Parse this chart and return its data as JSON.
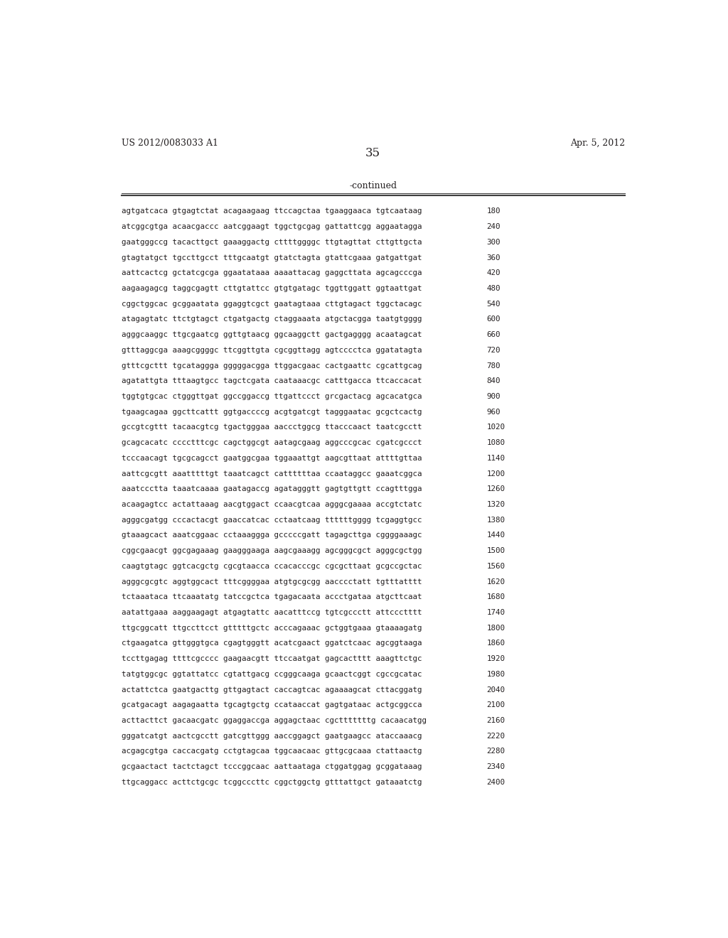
{
  "header_left": "US 2012/0083033 A1",
  "header_right": "Apr. 5, 2012",
  "page_number": "35",
  "continued_label": "-continued",
  "background_color": "#ffffff",
  "text_color": "#231f20",
  "font_size_header": 9.0,
  "font_size_page": 12,
  "font_size_continued": 9.0,
  "font_size_sequence": 7.8,
  "sequence_lines": [
    [
      "agtgatcaca gtgagtctat acagaagaag ttccagctaa tgaaggaaca tgtcaataag",
      "180"
    ],
    [
      "atcggcgtga acaacgaccc aatcggaagt tggctgcgag gattattcgg aggaatagga",
      "240"
    ],
    [
      "gaatgggccg tacacttgct gaaaggactg cttttggggc ttgtagttat cttgttgcta",
      "300"
    ],
    [
      "gtagtatgct tgccttgcct tttgcaatgt gtatctagta gtattcgaaa gatgattgat",
      "360"
    ],
    [
      "aattcactcg gctatcgcga ggaatataaa aaaattacag gaggcttata agcagcccga",
      "420"
    ],
    [
      "aagaagagcg taggcgagtt cttgtattcc gtgtgatagc tggttggatt ggtaattgat",
      "480"
    ],
    [
      "cggctggcac gcggaatata ggaggtcgct gaatagtaaa cttgtagact tggctacagc",
      "540"
    ],
    [
      "atagagtatc ttctgtagct ctgatgactg ctaggaaata atgctacgga taatgtgggg",
      "600"
    ],
    [
      "agggcaaggc ttgcgaatcg ggttgtaacg ggcaaggctt gactgagggg acaatagcat",
      "660"
    ],
    [
      "gtttaggcga aaagcggggc ttcggttgta cgcggttagg agtcccctca ggatatagta",
      "720"
    ],
    [
      "gtttcgcttt tgcataggga gggggacgga ttggacgaac cactgaattc cgcattgcag",
      "780"
    ],
    [
      "agatattgta tttaagtgcc tagctcgata caataaacgc catttgacca ttcaccacat",
      "840"
    ],
    [
      "tggtgtgcac ctgggttgat ggccggaccg ttgattccct grcgactacg agcacatgca",
      "900"
    ],
    [
      "tgaagcagaa ggcttcattt ggtgaccccg acgtgatcgt tagggaatac gcgctcactg",
      "960"
    ],
    [
      "gccgtcgttt tacaacgtcg tgactgggaa aaccctggcg ttacccaact taatcgcctt",
      "1020"
    ],
    [
      "gcagcacatc cccctttcgc cagctggcgt aatagcgaag aggcccgcac cgatcgccct",
      "1080"
    ],
    [
      "tcccaacagt tgcgcagcct gaatggcgaa tggaaattgt aagcgttaat attttgttaa",
      "1140"
    ],
    [
      "aattcgcgtt aaatttttgt taaatcagct cattttttaa ccaataggcc gaaatcggca",
      "1200"
    ],
    [
      "aaatccctta taaatcaaaa gaatagaccg agatagggtt gagtgttgtt ccagtttgga",
      "1260"
    ],
    [
      "acaagagtcc actattaaag aacgtggact ccaacgtcaa agggcgaaaa accgtctatc",
      "1320"
    ],
    [
      "agggcgatgg cccactacgt gaaccatcac cctaatcaag ttttttgggg tcgaggtgcc",
      "1380"
    ],
    [
      "gtaaagcact aaatcggaac cctaaaggga gcccccgatt tagagcttga cggggaaagc",
      "1440"
    ],
    [
      "cggcgaacgt ggcgagaaag gaagggaaga aagcgaaagg agcgggcgct agggcgctgg",
      "1500"
    ],
    [
      "caagtgtagc ggtcacgctg cgcgtaacca ccacacccgc cgcgcttaat gcgccgctac",
      "1560"
    ],
    [
      "agggcgcgtc aggtggcact tttcggggaa atgtgcgcgg aacccctatt tgtttatttt",
      "1620"
    ],
    [
      "tctaaataca ttcaaatatg tatccgctca tgagacaata accctgataa atgcttcaat",
      "1680"
    ],
    [
      "aatattgaaa aaggaagagt atgagtattc aacatttccg tgtcgccctt attccctttt",
      "1740"
    ],
    [
      "ttgcggcatt ttgccttcct gtttttgctc acccagaaac gctggtgaaa gtaaaagatg",
      "1800"
    ],
    [
      "ctgaagatca gttgggtgca cgagtgggtt acatcgaact ggatctcaac agcggtaaga",
      "1860"
    ],
    [
      "tccttgagag ttttcgcccc gaagaacgtt ttccaatgat gagcactttt aaagttctgc",
      "1920"
    ],
    [
      "tatgtggcgc ggtattatcc cgtattgacg ccgggcaaga gcaactcggt cgccgcatac",
      "1980"
    ],
    [
      "actattctca gaatgacttg gttgagtact caccagtcac agaaaagcat cttacggatg",
      "2040"
    ],
    [
      "gcatgacagt aagagaatta tgcagtgctg ccataaccat gagtgataac actgcggcca",
      "2100"
    ],
    [
      "acttacttct gacaacgatc ggaggaccga aggagctaac cgctttttttg cacaacatgg",
      "2160"
    ],
    [
      "gggatcatgt aactcgcctt gatcgttggg aaccggagct gaatgaagcc ataccaaacg",
      "2220"
    ],
    [
      "acgagcgtga caccacgatg cctgtagcaa tggcaacaac gttgcgcaaa ctattaactg",
      "2280"
    ],
    [
      "gcgaactact tactctagct tcccggcaac aattaataga ctggatggag gcggataaag",
      "2340"
    ],
    [
      "ttgcaggacc acttctgcgc tcggcccttc cggctggctg gtttattgct gataaatctg",
      "2400"
    ]
  ]
}
